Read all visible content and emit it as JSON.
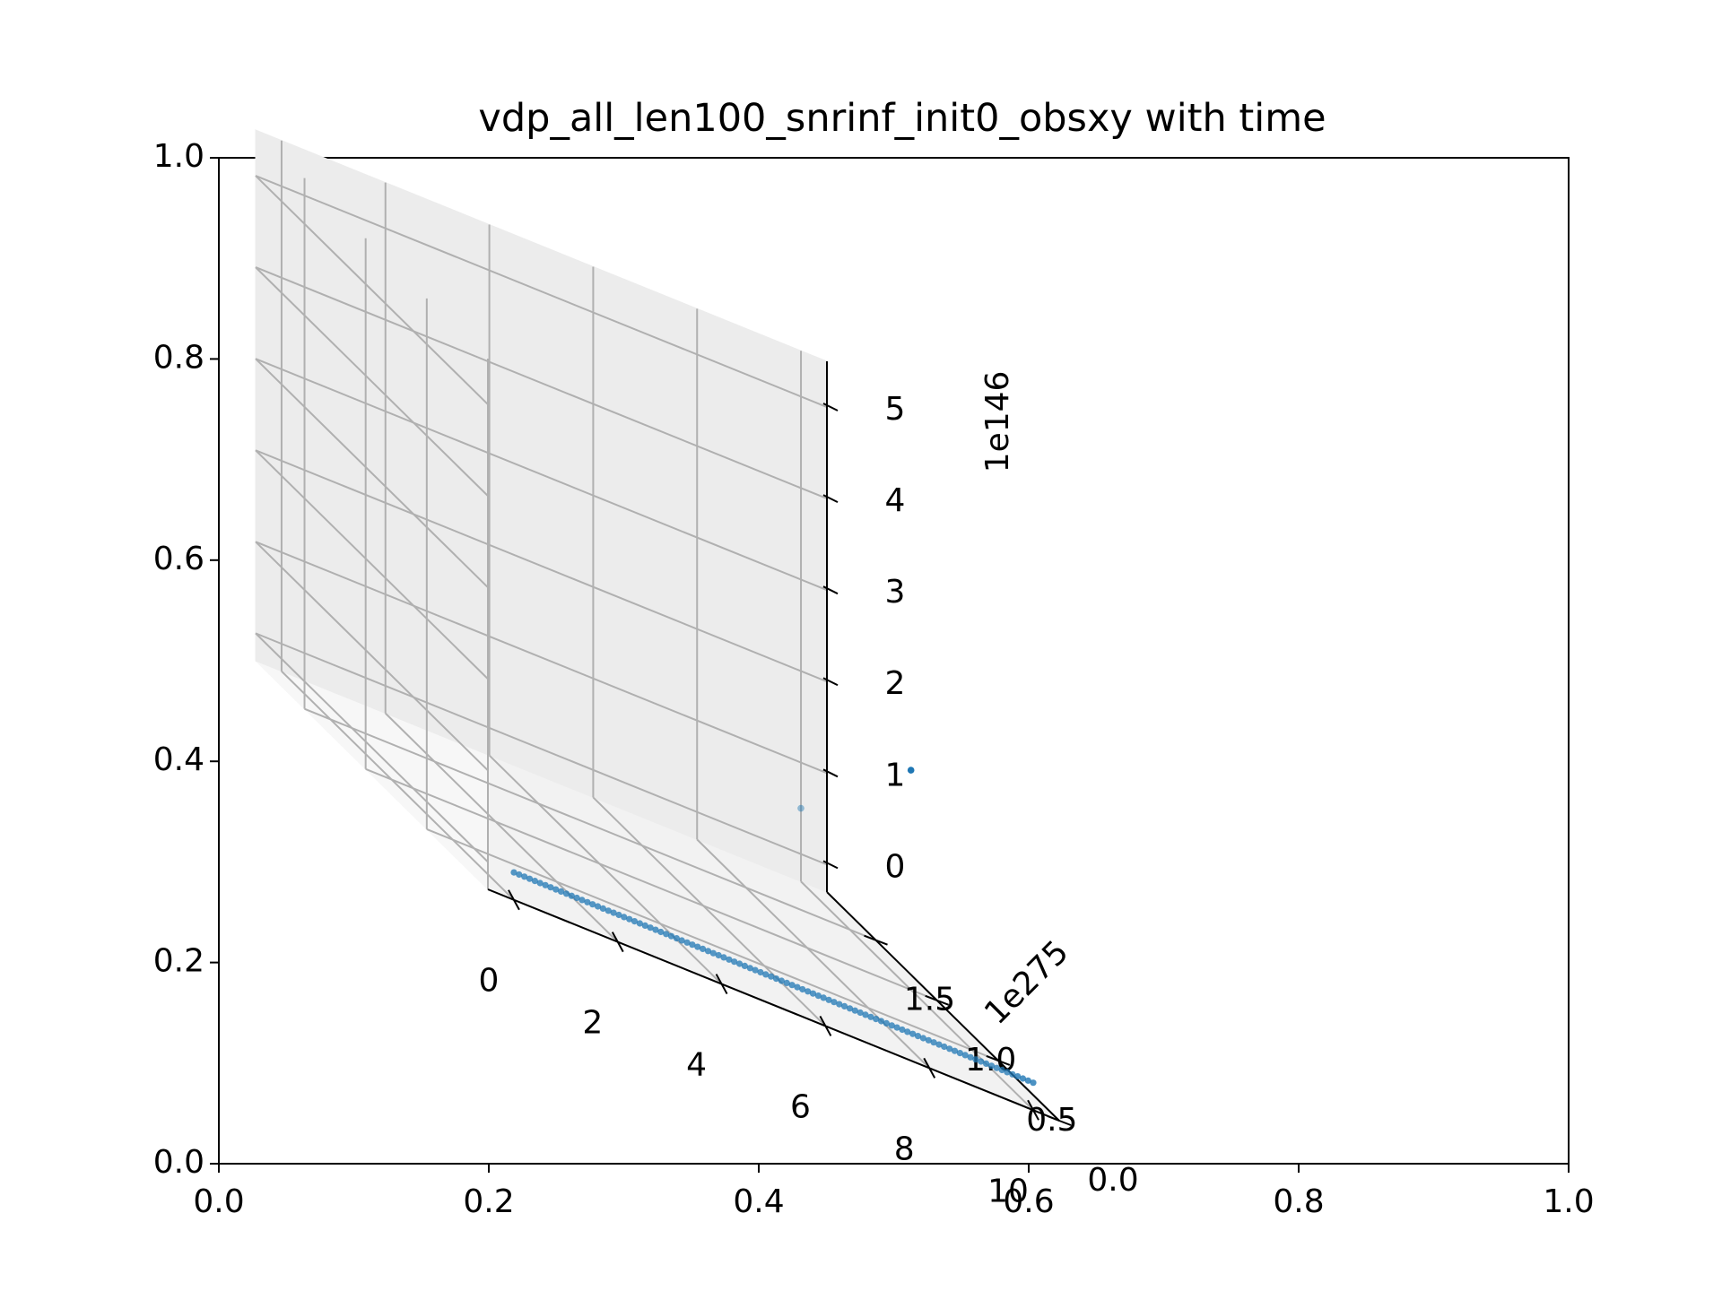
{
  "chart_data": {
    "type": "scatter",
    "projection": "3d",
    "title": "vdp_all_len100_snrinf_init0_obsxy with time",
    "frame_axes": {
      "x_ticks": [
        "0.0",
        "0.2",
        "0.4",
        "0.6",
        "0.8",
        "1.0"
      ],
      "y_ticks": [
        "0.0",
        "0.2",
        "0.4",
        "0.6",
        "0.8",
        "1.0"
      ],
      "xlim": [
        0,
        1
      ],
      "ylim": [
        0,
        1
      ]
    },
    "axes3d": {
      "x_ticks": [
        "0",
        "2",
        "4",
        "6",
        "8",
        "10"
      ],
      "xlim": [
        -0.5,
        10.5
      ],
      "y_ticks": [
        "0.0",
        "0.5",
        "1.0",
        "1.5"
      ],
      "y_offset": "1e275",
      "ylim": [
        0,
        1.9
      ],
      "z_ticks": [
        "0",
        "1",
        "2",
        "3",
        "4",
        "5"
      ],
      "z_offset": "1e146",
      "zlim": [
        -0.3,
        5.5
      ],
      "grid": true
    },
    "series": [
      {
        "color": "#1f77b4",
        "line_points": {
          "t_start": 0.0,
          "t_end": 9.6,
          "count": 96,
          "y": 0,
          "z": 0
        },
        "tail_points": [
          {
            "t": 9.7,
            "y": 0,
            "z": 0
          },
          {
            "t": 9.8,
            "y": 0,
            "z": 0
          },
          {
            "t": 9.9,
            "y": 0,
            "z": 0
          },
          {
            "t": 10.0,
            "y": 0,
            "z": 0
          }
        ],
        "outlier_points": [
          {
            "t": 10.0,
            "y": 1.0,
            "z": 2.1
          },
          {
            "t": 10.0,
            "y": 1.9,
            "z": 0.5
          }
        ]
      }
    ]
  }
}
